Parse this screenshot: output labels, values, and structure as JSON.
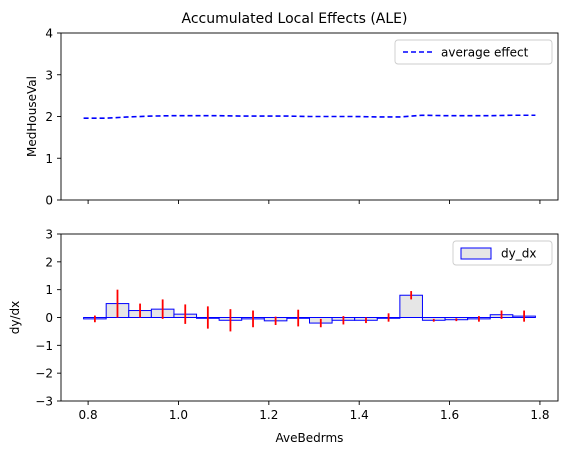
{
  "chart_data": [
    {
      "type": "line",
      "title": "Accumulated Local Effects (ALE)",
      "xlabel": "",
      "ylabel": "MedHouseVal",
      "xlim": [
        0.74,
        1.84
      ],
      "ylim": [
        0,
        4
      ],
      "yticks": [
        0,
        1,
        2,
        3,
        4
      ],
      "xticks": [
        0.8,
        1.0,
        1.2,
        1.4,
        1.6,
        1.8
      ],
      "xtick_labels_shown": false,
      "legend": {
        "position": "upper right",
        "label": "average effect"
      },
      "series": [
        {
          "name": "average effect",
          "color": "#0000ff",
          "style": "dashed",
          "x": [
            0.79,
            0.84,
            0.89,
            0.94,
            0.99,
            1.04,
            1.09,
            1.14,
            1.19,
            1.24,
            1.29,
            1.34,
            1.39,
            1.44,
            1.49,
            1.54,
            1.59,
            1.64,
            1.69,
            1.74,
            1.79
          ],
          "y": [
            1.96,
            1.96,
            1.99,
            2.01,
            2.02,
            2.02,
            2.02,
            2.01,
            2.01,
            2.01,
            2.0,
            2.0,
            2.0,
            1.99,
            1.99,
            2.03,
            2.02,
            2.02,
            2.02,
            2.03,
            2.03
          ]
        }
      ]
    },
    {
      "type": "bar",
      "xlabel": "AveBedrms",
      "ylabel": "dy/dx",
      "xlim": [
        0.74,
        1.84
      ],
      "ylim": [
        -3,
        3
      ],
      "yticks": [
        -3,
        -2,
        -1,
        0,
        1,
        2,
        3
      ],
      "xticks": [
        0.8,
        1.0,
        1.2,
        1.4,
        1.6,
        1.8
      ],
      "xtick_labels": [
        "0.8",
        "1.0",
        "1.2",
        "1.4",
        "1.6",
        "1.8"
      ],
      "legend": {
        "position": "upper right",
        "label": "dy_dx"
      },
      "bar_fill": "#e6e6e6",
      "bar_edge": "#0000ff",
      "errorbar_color": "#ff0000",
      "bars": [
        {
          "x0": 0.79,
          "x1": 0.84,
          "value": -0.05,
          "err": 0.12
        },
        {
          "x0": 0.84,
          "x1": 0.89,
          "value": 0.5,
          "err": 0.5
        },
        {
          "x0": 0.89,
          "x1": 0.94,
          "value": 0.25,
          "err": 0.25
        },
        {
          "x0": 0.94,
          "x1": 0.99,
          "value": 0.3,
          "err": 0.35
        },
        {
          "x0": 0.99,
          "x1": 1.04,
          "value": 0.12,
          "err": 0.35
        },
        {
          "x0": 1.04,
          "x1": 1.09,
          "value": 0.0,
          "err": 0.4
        },
        {
          "x0": 1.09,
          "x1": 1.14,
          "value": -0.1,
          "err": 0.4
        },
        {
          "x0": 1.14,
          "x1": 1.19,
          "value": -0.05,
          "err": 0.3
        },
        {
          "x0": 1.19,
          "x1": 1.24,
          "value": -0.12,
          "err": 0.15
        },
        {
          "x0": 1.24,
          "x1": 1.29,
          "value": -0.02,
          "err": 0.3
        },
        {
          "x0": 1.29,
          "x1": 1.34,
          "value": -0.2,
          "err": 0.15
        },
        {
          "x0": 1.34,
          "x1": 1.39,
          "value": -0.1,
          "err": 0.15
        },
        {
          "x0": 1.39,
          "x1": 1.44,
          "value": -0.1,
          "err": 0.1
        },
        {
          "x0": 1.44,
          "x1": 1.49,
          "value": 0.0,
          "err": 0.15
        },
        {
          "x0": 1.49,
          "x1": 1.54,
          "value": 0.8,
          "err": 0.15
        },
        {
          "x0": 1.54,
          "x1": 1.59,
          "value": -0.1,
          "err": 0.05
        },
        {
          "x0": 1.59,
          "x1": 1.64,
          "value": -0.08,
          "err": 0.05
        },
        {
          "x0": 1.64,
          "x1": 1.69,
          "value": -0.05,
          "err": 0.1
        },
        {
          "x0": 1.69,
          "x1": 1.74,
          "value": 0.1,
          "err": 0.15
        },
        {
          "x0": 1.74,
          "x1": 1.79,
          "value": 0.05,
          "err": 0.2
        }
      ]
    }
  ]
}
